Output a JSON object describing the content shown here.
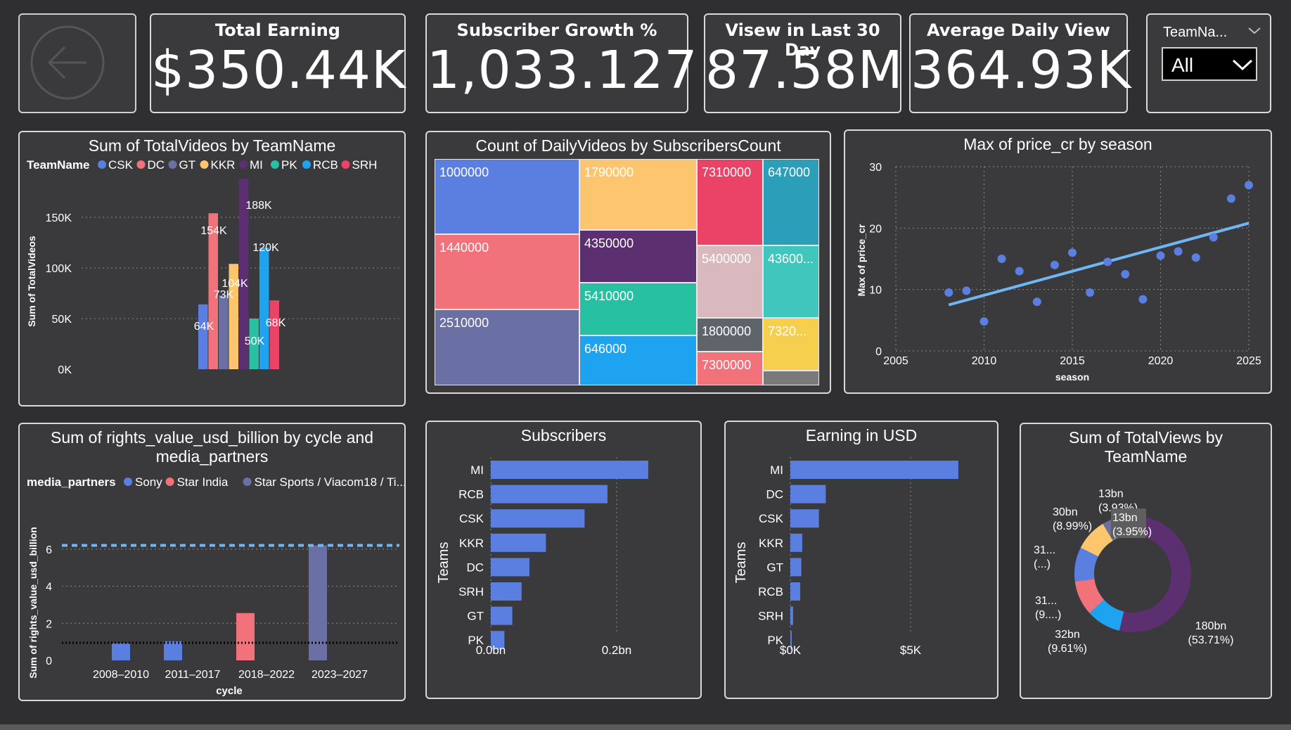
{
  "kpis": {
    "total_earning": {
      "title": "Total Earning",
      "value": "$350.44K"
    },
    "subscriber_growth": {
      "title": "Subscriber Growth %",
      "value": "1,033.127"
    },
    "views_30": {
      "title": "Visew in Last 30 Day",
      "value": "87.58M"
    },
    "avg_daily": {
      "title": "Average Daily View",
      "value": "364.93K"
    }
  },
  "slicer": {
    "title": "TeamNa...",
    "selected": "All"
  },
  "colors": {
    "CSK": "#5b7fe0",
    "DC": "#f2727c",
    "GT": "#6b70a4",
    "KKR": "#fdc66e",
    "MI": "#5c2f70",
    "PK": "#28c0a3",
    "RCB": "#1da3f0",
    "SRH": "#ea4367",
    "bar_blue": "#5b7fe0",
    "trend": "#6fb6f5"
  },
  "chart_data": [
    {
      "id": "total_videos",
      "type": "bar",
      "title": "Sum of TotalVideos by TeamName",
      "legend_title": "TeamName",
      "ylabel": "Sum of TotalVideos",
      "xlabel": "",
      "ylim": [
        0,
        188000
      ],
      "yticks": [
        "0K",
        "50K",
        "100K",
        "150K"
      ],
      "categories": [
        "CSK",
        "DC",
        "GT",
        "KKR",
        "MI",
        "PK",
        "RCB",
        "SRH"
      ],
      "values": [
        64000,
        154000,
        73000,
        104000,
        188000,
        50000,
        120000,
        68000
      ],
      "labels": [
        "64K",
        "154K",
        "73K",
        "104K",
        "188K",
        "50K",
        "120K",
        "68K"
      ]
    },
    {
      "id": "daily_videos",
      "type": "treemap",
      "title": "Count of DailyVideos by SubscribersCount",
      "cells": [
        {
          "label": "1000000",
          "color": "#5b7fe0"
        },
        {
          "label": "1440000",
          "color": "#f2727c"
        },
        {
          "label": "2510000",
          "color": "#6b70a4"
        },
        {
          "label": "1790000",
          "color": "#fdc66e"
        },
        {
          "label": "4350000",
          "color": "#5c2f70"
        },
        {
          "label": "5410000",
          "color": "#28c0a3"
        },
        {
          "label": "646000",
          "color": "#1da3f0"
        },
        {
          "label": "7310000",
          "color": "#ea4367"
        },
        {
          "label": "647000",
          "color": "#2b9fba"
        },
        {
          "label": "5400000",
          "color": "#d9b9bd"
        },
        {
          "label": "43600...",
          "color": "#40c6bc"
        },
        {
          "label": "1800000",
          "color": "#5e6469"
        },
        {
          "label": "7320...",
          "color": "#f6cf4e"
        },
        {
          "label": "7300000",
          "color": "#f2727c"
        },
        {
          "label": "",
          "color": "#7a7a7a"
        }
      ]
    },
    {
      "id": "price_season",
      "type": "scatter",
      "title": "Max of price_cr by season",
      "xlabel": "season",
      "ylabel": "Max of price_cr",
      "xlim": [
        2005,
        2025
      ],
      "ylim": [
        0,
        30
      ],
      "xticks": [
        2005,
        2010,
        2015,
        2020,
        2025
      ],
      "yticks": [
        0,
        10,
        20,
        30
      ],
      "points": [
        {
          "x": 2008,
          "y": 9.5
        },
        {
          "x": 2009,
          "y": 9.8
        },
        {
          "x": 2010,
          "y": 4.8
        },
        {
          "x": 2011,
          "y": 15.0
        },
        {
          "x": 2012,
          "y": 13.0
        },
        {
          "x": 2013,
          "y": 8.0
        },
        {
          "x": 2014,
          "y": 14.0
        },
        {
          "x": 2015,
          "y": 16.0
        },
        {
          "x": 2016,
          "y": 9.5
        },
        {
          "x": 2017,
          "y": 14.5
        },
        {
          "x": 2018,
          "y": 12.5
        },
        {
          "x": 2019,
          "y": 8.4
        },
        {
          "x": 2020,
          "y": 15.5
        },
        {
          "x": 2021,
          "y": 16.2
        },
        {
          "x": 2022,
          "y": 15.2
        },
        {
          "x": 2023,
          "y": 18.5
        },
        {
          "x": 2024,
          "y": 24.8
        },
        {
          "x": 2025,
          "y": 27.0
        }
      ],
      "trend": [
        {
          "x": 2008,
          "y": 7.5
        },
        {
          "x": 2025,
          "y": 20.8
        }
      ],
      "grid": true
    },
    {
      "id": "rights_value",
      "type": "bar",
      "title": "Sum of rights_value_usd_billion by cycle and media_partners",
      "legend_title": "media_partners",
      "legend": [
        {
          "name": "Sony",
          "color": "#5b7fe0"
        },
        {
          "name": "Star India",
          "color": "#f2727c"
        },
        {
          "name": "Star Sports / Viacom18 / Ti...",
          "color": "#6b70a4"
        }
      ],
      "xlabel": "cycle",
      "ylabel": "Sum of rights_value_usd_billion",
      "ylim": [
        0,
        7
      ],
      "yticks": [
        0,
        2,
        4,
        6
      ],
      "categories": [
        "2008–2010",
        "2011–2017",
        "2018–2022",
        "2023–2027"
      ],
      "values": [
        0.92,
        1.03,
        2.55,
        6.2
      ],
      "bar_colors": [
        "#5b7fe0",
        "#5b7fe0",
        "#f2727c",
        "#6b70a4"
      ],
      "ref_lines": [
        {
          "y": 6.2,
          "style": "dashed",
          "color": "#6fb6f5"
        },
        {
          "y": 0.95,
          "style": "dotted",
          "color": "#000000"
        }
      ]
    },
    {
      "id": "subscribers",
      "type": "bar",
      "orientation": "horizontal",
      "title": "Subscribers",
      "ylabel": "Teams",
      "xlim": [
        0,
        0.28
      ],
      "xticks": [
        "0.0bn",
        "0.2bn"
      ],
      "categories": [
        "MI",
        "RCB",
        "CSK",
        "KKR",
        "DC",
        "SRH",
        "GT",
        "PK"
      ],
      "values": [
        0.22,
        0.163,
        0.131,
        0.077,
        0.054,
        0.043,
        0.03,
        0.019
      ]
    },
    {
      "id": "earning_usd",
      "type": "bar",
      "orientation": "horizontal",
      "title": "Earning in USD",
      "ylabel": "Teams",
      "xlim": [
        0,
        8000
      ],
      "xticks": [
        "$0K",
        "$5K"
      ],
      "categories": [
        "MI",
        "DC",
        "CSK",
        "KKR",
        "GT",
        "RCB",
        "SRH",
        "PK"
      ],
      "values": [
        7350,
        1550,
        1250,
        520,
        480,
        430,
        120,
        60
      ]
    },
    {
      "id": "total_views",
      "type": "pie",
      "donut": true,
      "title": "Sum of TotalViews by TeamName",
      "slices": [
        {
          "team": "MI",
          "value": 53.71,
          "color": "#5c2f70"
        },
        {
          "team": "RCB",
          "value": 9.61,
          "color": "#1da3f0"
        },
        {
          "team": "DC",
          "value": 9.6,
          "color": "#f2727c"
        },
        {
          "team": "CSK",
          "value": 9.5,
          "color": "#5b7fe0"
        },
        {
          "team": "KKR",
          "value": 8.99,
          "color": "#fdc66e"
        },
        {
          "team": "GT",
          "value": 3.95,
          "color": "#6b70a4"
        },
        {
          "team": "SRH",
          "value": 3.93,
          "color": "#ea4367"
        },
        {
          "team": "PK",
          "value": 0.71,
          "color": "#28c0a3"
        }
      ],
      "labels": [
        {
          "text1": "180bn",
          "text2": "(53.71%)"
        },
        {
          "text1": "32bn",
          "text2": "(9.61%)"
        },
        {
          "text1": "31...",
          "text2": "(9....)"
        },
        {
          "text1": "31...",
          "text2": "(...)"
        },
        {
          "text1": "30bn",
          "text2": "(8.99%)"
        },
        {
          "text1": "13bn",
          "text2": "(3.93%)"
        },
        {
          "text1": "13bn",
          "text2": "(3.95%)"
        }
      ]
    }
  ]
}
